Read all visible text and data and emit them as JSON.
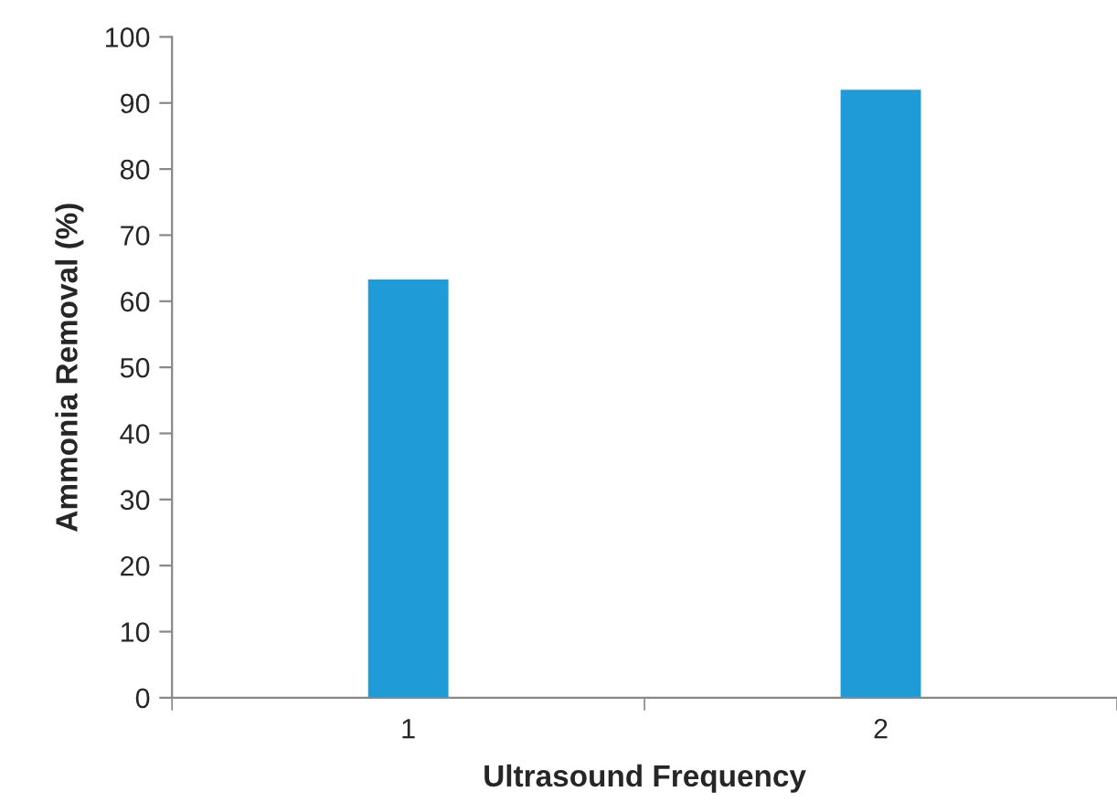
{
  "chart_data": {
    "type": "bar",
    "xlabel": "Ultrasound Frequency",
    "ylabel": "Ammonia Removal (%)",
    "categories": [
      "1",
      "2"
    ],
    "values": [
      63.3,
      92
    ],
    "color": "#1f9bd7",
    "ylim": [
      0,
      100
    ],
    "yticks": [
      0,
      10,
      20,
      30,
      40,
      50,
      60,
      70,
      80,
      90,
      100
    ],
    "grid": false
  }
}
